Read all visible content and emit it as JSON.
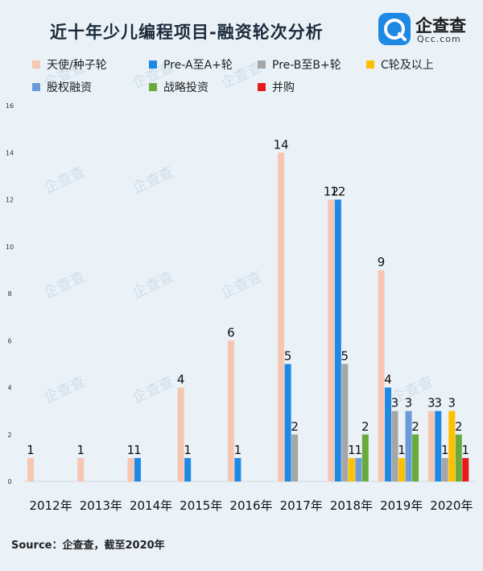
{
  "title": "近十年少儿编程项目-融资轮次分析",
  "logo": {
    "name": "企查查",
    "sub": "Qcc.com"
  },
  "source": "Source：企查查，截至2020年",
  "legend": [
    {
      "label": "天使/种子轮",
      "color": "#f7c6b0"
    },
    {
      "label": "Pre-A至A+轮",
      "color": "#1e88e5"
    },
    {
      "label": "Pre-B至B+轮",
      "color": "#a6a6a6"
    },
    {
      "label": "C轮及以上",
      "color": "#ffc000"
    },
    {
      "label": "股权融资",
      "color": "#6a9bd8"
    },
    {
      "label": "战略投资",
      "color": "#6aaa3c"
    },
    {
      "label": "并购",
      "color": "#e41a1c"
    }
  ],
  "chart_data": {
    "type": "bar",
    "title": "近十年少儿编程项目-融资轮次分析",
    "categories": [
      "2012年",
      "2013年",
      "2014年",
      "2015年",
      "2016年",
      "2017年",
      "2018年",
      "2019年",
      "2020年"
    ],
    "series": [
      {
        "name": "天使/种子轮",
        "color": "#f7c6b0",
        "values": [
          1,
          1,
          1,
          4,
          6,
          14,
          12,
          9,
          3
        ]
      },
      {
        "name": "Pre-A至A+轮",
        "color": "#1e88e5",
        "values": [
          null,
          null,
          1,
          1,
          1,
          5,
          12,
          4,
          3
        ]
      },
      {
        "name": "Pre-B至B+轮",
        "color": "#a6a6a6",
        "values": [
          null,
          null,
          null,
          null,
          null,
          2,
          5,
          3,
          1
        ]
      },
      {
        "name": "C轮及以上",
        "color": "#ffc000",
        "values": [
          null,
          null,
          null,
          null,
          null,
          null,
          1,
          1,
          3
        ]
      },
      {
        "name": "股权融资",
        "color": "#6a9bd8",
        "values": [
          null,
          null,
          null,
          null,
          null,
          null,
          1,
          3,
          null
        ]
      },
      {
        "name": "战略投资",
        "color": "#6aaa3c",
        "values": [
          null,
          null,
          null,
          null,
          null,
          null,
          2,
          2,
          2
        ]
      },
      {
        "name": "并购",
        "color": "#e41a1c",
        "values": [
          null,
          null,
          null,
          null,
          null,
          null,
          null,
          null,
          1
        ]
      }
    ],
    "ylim": [
      0,
      16
    ],
    "yticks": [
      0,
      2,
      4,
      6,
      8,
      10,
      12,
      14,
      16
    ],
    "xlabel": "",
    "ylabel": "",
    "grid": false,
    "legend_position": "top"
  }
}
